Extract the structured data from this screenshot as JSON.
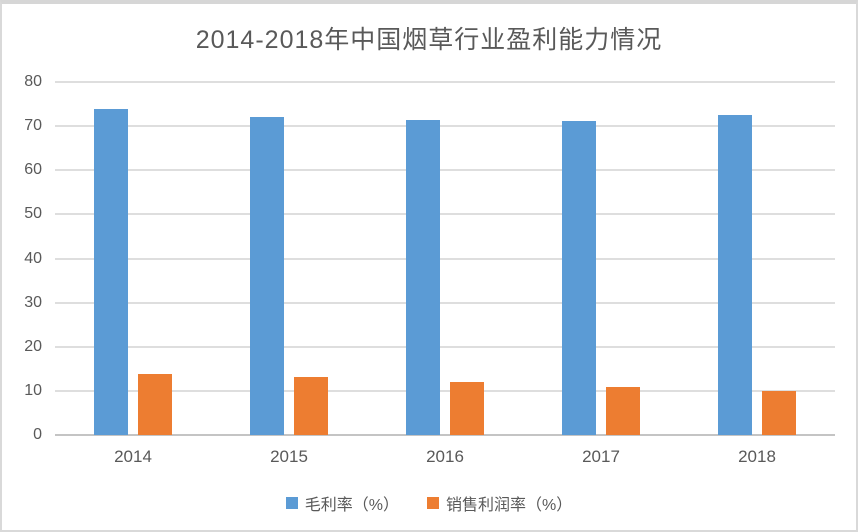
{
  "chart_data": {
    "type": "bar",
    "title": "2014-2018年中国烟草行业盈利能力情况",
    "categories": [
      "2014",
      "2015",
      "2016",
      "2017",
      "2018"
    ],
    "series": [
      {
        "name": "毛利率（%）",
        "color": "#5B9BD5",
        "values": [
          73.8,
          72.0,
          71.3,
          71.1,
          72.6
        ]
      },
      {
        "name": "销售利润率（%）",
        "color": "#ED7D31",
        "values": [
          13.8,
          13.2,
          12.0,
          10.9,
          9.9
        ]
      }
    ],
    "ylim": [
      0,
      80
    ],
    "yticks": [
      0,
      10,
      20,
      30,
      40,
      50,
      60,
      70,
      80
    ],
    "grid": "horizontal",
    "legend_position": "bottom"
  },
  "styles": {
    "series_blue": "#5B9BD5",
    "series_orange": "#ED7D31",
    "gridline_color": "#DEDEDE",
    "axis_line_color": "#C4C4C4",
    "text_color": "#595959",
    "border_color": "#D9D9D9",
    "background": "#FFFFFF"
  }
}
